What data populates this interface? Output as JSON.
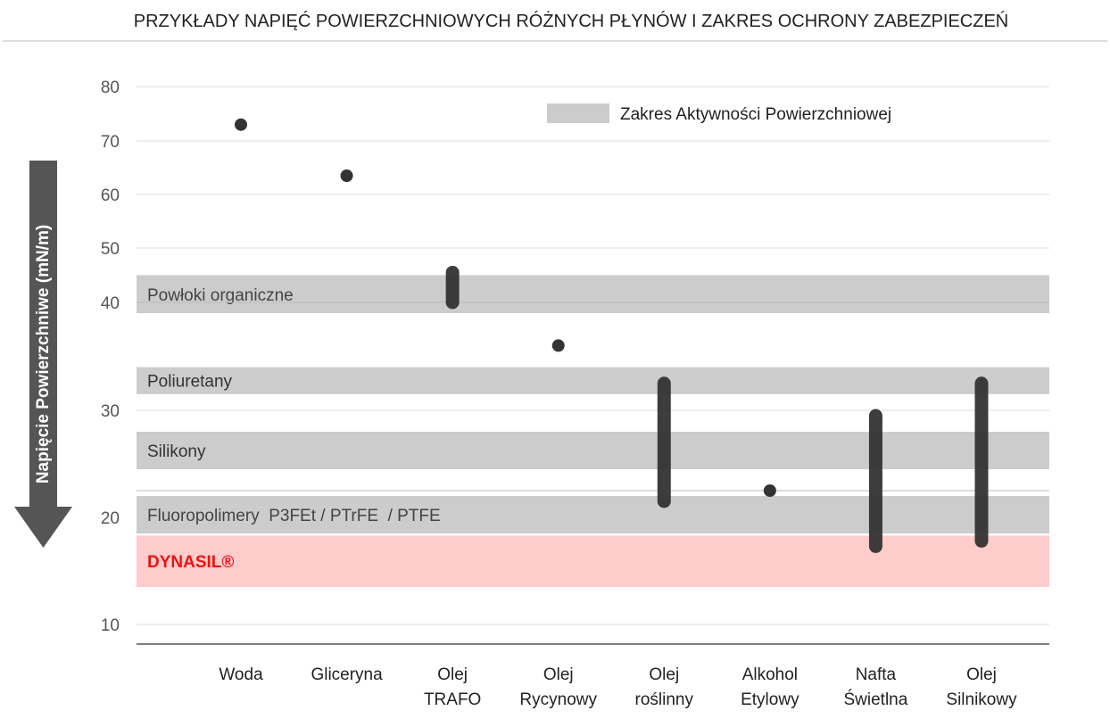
{
  "chart_data": {
    "type": "range-dot",
    "title": "PRZYKŁADY NAPIĘĆ POWIERZCHNIOWYCH RÓŻNYCH PŁYNÓW I ZAKRES OCHRONY ZABEZPIECZEŃ",
    "ylabel": "Napięcie Powierzchniwe (mN/m)",
    "yticks": [
      "80",
      "70",
      "60",
      "50",
      "40",
      "30",
      "20",
      "10"
    ],
    "legend": {
      "label": "Zakres Aktywności Powierzchniowej",
      "color": "#cccccc",
      "position": "top-right"
    },
    "bands": [
      {
        "label": "Powłoki organiczne",
        "from": 39,
        "to": 45,
        "color": "#cccccc",
        "text_color": "#444444"
      },
      {
        "label": "Poliuretany",
        "from": 31.5,
        "to": 34,
        "color": "#cccccc",
        "text_color": "#333333"
      },
      {
        "label": "Silikony",
        "from": 24.5,
        "to": 28,
        "color": "#cccccc",
        "text_color": "#333333"
      },
      {
        "label": "Fluoropolimery  P3FEt / PTrFE  / PTFE",
        "from": 18.5,
        "to": 22,
        "color": "#cccccc",
        "text_color": "#444444"
      },
      {
        "label": "DYNASIL®",
        "from": 13.5,
        "to": 18.3,
        "color": "#ffcccc",
        "text_color": "#ee1111"
      }
    ],
    "categories": [
      {
        "label": [
          "Woda"
        ],
        "min": 73,
        "max": 73
      },
      {
        "label": [
          "Gliceryna"
        ],
        "min": 63.5,
        "max": 63.5
      },
      {
        "label": [
          "Olej",
          "TRAFO"
        ],
        "min": 40,
        "max": 45.5
      },
      {
        "label": [
          "Olej",
          "Rycynowy"
        ],
        "min": 36,
        "max": 36
      },
      {
        "label": [
          "Olej",
          "roślinny"
        ],
        "min": 21.5,
        "max": 32.5
      },
      {
        "label": [
          "Alkohol",
          "Etylowy"
        ],
        "min": 22.5,
        "max": 22.5
      },
      {
        "label": [
          "Nafta",
          "Świetlna"
        ],
        "min": 17.3,
        "max": 29.5
      },
      {
        "label": [
          "Olej",
          "Silnikowy"
        ],
        "min": 17.8,
        "max": 32.5
      }
    ],
    "colors": {
      "marker": "#333333",
      "axis": "#555555",
      "grid": "#dddddd",
      "arrow": "#555555"
    }
  }
}
